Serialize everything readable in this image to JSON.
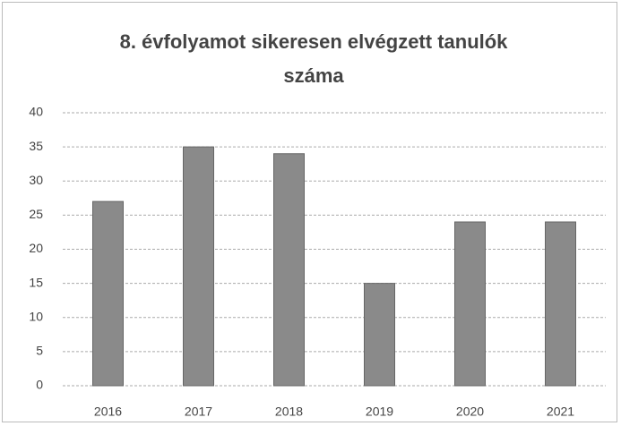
{
  "chart_data": {
    "type": "bar",
    "title": "8. évfolyamot sikeresen elvégzett tanulók száma",
    "categories": [
      "2016",
      "2017",
      "2018",
      "2019",
      "2020",
      "2021"
    ],
    "values": [
      27,
      35,
      34,
      15,
      24,
      24
    ],
    "color": "#8a8a8a",
    "ylim": [
      0,
      40
    ],
    "yticks": [
      0,
      5,
      10,
      15,
      20,
      25,
      30,
      35,
      40
    ],
    "grid": true
  }
}
